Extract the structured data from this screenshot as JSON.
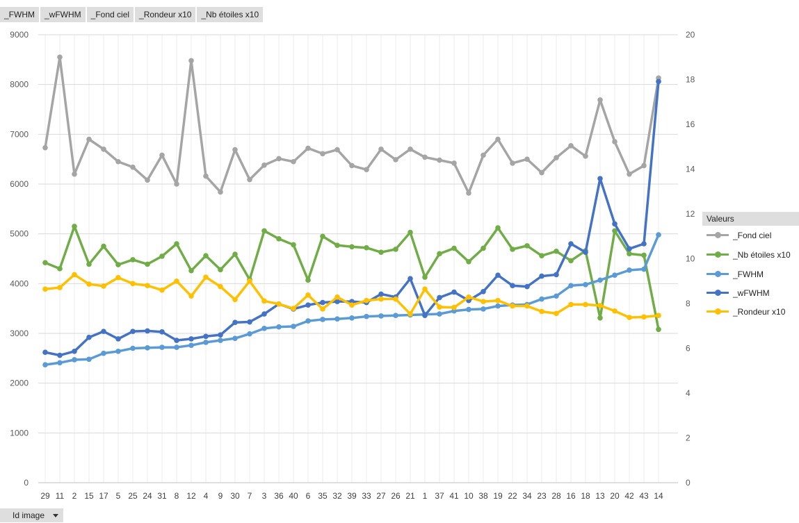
{
  "field_buttons": [
    "_FWHM",
    "_wFWHM",
    "_Fond ciel",
    "_Rondeur x10",
    "_Nb étoiles x10"
  ],
  "legend": {
    "title": "Valeurs",
    "items": [
      {
        "label": "_Fond ciel",
        "color": "#a5a5a5"
      },
      {
        "label": "_Nb étoiles x10",
        "color": "#70ad47"
      },
      {
        "label": "_FWHM",
        "color": "#5b9bd5"
      },
      {
        "label": "_wFWHM",
        "color": "#4472c4"
      },
      {
        "label": "_Rondeur x10",
        "color": "#ffc000"
      }
    ]
  },
  "filter_button": {
    "label": "Id image"
  },
  "chart_data": {
    "type": "line",
    "categories": [
      "29",
      "11",
      "2",
      "15",
      "17",
      "5",
      "25",
      "24",
      "31",
      "8",
      "12",
      "4",
      "9",
      "30",
      "7",
      "3",
      "36",
      "40",
      "6",
      "35",
      "32",
      "39",
      "33",
      "27",
      "26",
      "21",
      "1",
      "37",
      "41",
      "10",
      "38",
      "19",
      "22",
      "34",
      "23",
      "28",
      "16",
      "18",
      "13",
      "20",
      "42",
      "43",
      "14"
    ],
    "y_left": {
      "range": [
        0,
        9000
      ],
      "ticks": [
        "0",
        "1000",
        "2000",
        "3000",
        "4000",
        "5000",
        "6000",
        "7000",
        "8000",
        "9000"
      ]
    },
    "y_right": {
      "range": [
        0,
        20
      ],
      "ticks": [
        "0",
        "2",
        "4",
        "6",
        "8",
        "10",
        "12",
        "14",
        "16",
        "18",
        "20"
      ]
    },
    "grid": true,
    "legend_position": "right",
    "series": [
      {
        "name": "_Fond ciel",
        "axis": "left",
        "color": "#a5a5a5",
        "values": [
          6730,
          8550,
          6200,
          6900,
          6700,
          6450,
          6340,
          6080,
          6580,
          6000,
          8480,
          6160,
          5840,
          6690,
          6090,
          6380,
          6510,
          6450,
          6720,
          6610,
          6690,
          6370,
          6290,
          6700,
          6490,
          6700,
          6540,
          6480,
          6420,
          5820,
          6580,
          6900,
          6420,
          6500,
          6230,
          6530,
          6770,
          6560,
          7690,
          6850,
          6200,
          6370,
          8130
        ]
      },
      {
        "name": "_Nb étoiles x10",
        "axis": "left",
        "color": "#70ad47",
        "values": [
          4420,
          4300,
          5150,
          4390,
          4750,
          4380,
          4480,
          4390,
          4550,
          4800,
          4260,
          4560,
          4280,
          4590,
          4080,
          5060,
          4900,
          4780,
          4070,
          4950,
          4770,
          4740,
          4720,
          4630,
          4690,
          5030,
          4130,
          4600,
          4710,
          4440,
          4710,
          5120,
          4690,
          4760,
          4560,
          4650,
          4460,
          4660,
          3310,
          5060,
          4600,
          4570,
          3080
        ]
      },
      {
        "name": "_FWHM",
        "axis": "left",
        "color": "#5b9bd5",
        "values": [
          2370,
          2410,
          2470,
          2480,
          2600,
          2640,
          2700,
          2710,
          2720,
          2720,
          2760,
          2820,
          2860,
          2900,
          2990,
          3100,
          3130,
          3140,
          3250,
          3280,
          3290,
          3310,
          3340,
          3350,
          3360,
          3370,
          3380,
          3390,
          3450,
          3480,
          3490,
          3550,
          3570,
          3580,
          3690,
          3750,
          3960,
          3980,
          4070,
          4170,
          4270,
          4290,
          4980
        ]
      },
      {
        "name": "_wFWHM",
        "axis": "left",
        "color": "#4472c4",
        "values": [
          2620,
          2560,
          2640,
          2920,
          3040,
          2890,
          3040,
          3050,
          3030,
          2860,
          2890,
          2940,
          2970,
          3220,
          3230,
          3390,
          3590,
          3490,
          3570,
          3620,
          3640,
          3640,
          3620,
          3790,
          3730,
          4100,
          3360,
          3720,
          3830,
          3660,
          3840,
          4170,
          3960,
          3940,
          4150,
          4180,
          4800,
          4630,
          6110,
          5200,
          4700,
          4800,
          8060
        ]
      },
      {
        "name": "_Rondeur x10",
        "axis": "left",
        "color": "#ffc000",
        "values": [
          3890,
          3920,
          4180,
          3990,
          3950,
          4120,
          4000,
          3960,
          3870,
          4050,
          3750,
          4130,
          3940,
          3680,
          4050,
          3650,
          3590,
          3500,
          3770,
          3490,
          3730,
          3570,
          3660,
          3690,
          3690,
          3390,
          3890,
          3530,
          3520,
          3730,
          3640,
          3660,
          3550,
          3550,
          3440,
          3400,
          3580,
          3580,
          3560,
          3450,
          3320,
          3330,
          3360
        ]
      }
    ]
  }
}
